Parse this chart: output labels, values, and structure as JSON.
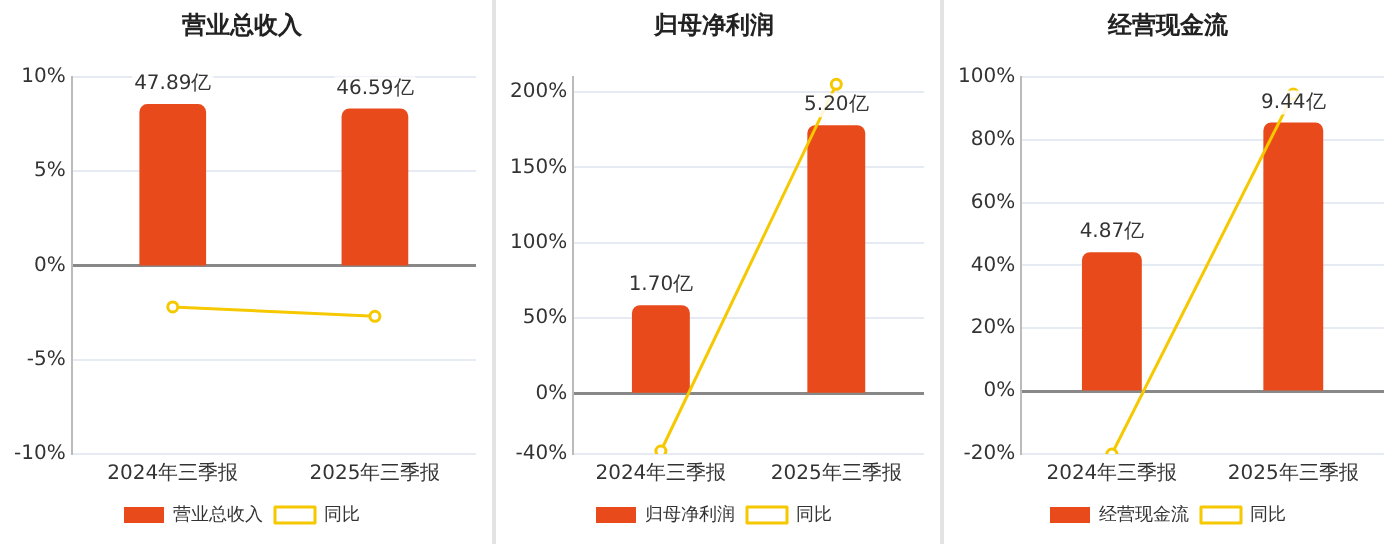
{
  "chart_data": [
    {
      "type": "bar",
      "title": "营业总收入",
      "categories": [
        "2024年三季报",
        "2025年三季报"
      ],
      "series": [
        {
          "name": "营业总收入",
          "color": "#e84a1b",
          "values": [
            47.89,
            46.59
          ],
          "axis": "y2",
          "value_labels": [
            "47.89亿",
            "46.59亿"
          ]
        },
        {
          "name": "同比",
          "type": "line",
          "color": "#f5c800",
          "values": [
            -2.2,
            -2.7
          ]
        }
      ],
      "ylim": [
        -10,
        10
      ],
      "yticks": [
        {
          "value": -10,
          "label": "-10%"
        },
        {
          "value": -5,
          "label": "-5%"
        },
        {
          "value": 0,
          "label": "0%"
        },
        {
          "value": 5,
          "label": "5%"
        },
        {
          "value": 10,
          "label": "10%"
        }
      ],
      "y2lim": [
        -56,
        56
      ],
      "grid": "y",
      "legend": "bottom",
      "marker": "circle"
    },
    {
      "type": "bar",
      "title": "归母净利润",
      "categories": [
        "2024年三季报",
        "2025年三季报"
      ],
      "series": [
        {
          "name": "归母净利润",
          "color": "#e84a1b",
          "values": [
            1.7,
            5.2
          ],
          "axis": "y2",
          "value_labels": [
            "1.70亿",
            "5.20亿"
          ]
        },
        {
          "name": "同比",
          "type": "line",
          "color": "#f5c800",
          "values": [
            -38,
            205
          ]
        }
      ],
      "ylim": [
        -40,
        210
      ],
      "yticks": [
        {
          "value": -40,
          "label": "-40%"
        },
        {
          "value": 0,
          "label": "0%"
        },
        {
          "value": 50,
          "label": "50%"
        },
        {
          "value": 100,
          "label": "100%"
        },
        {
          "value": 150,
          "label": "150%"
        },
        {
          "value": 200,
          "label": "200%"
        }
      ],
      "y2lim": [
        -1.19,
        6.14
      ],
      "grid": "y",
      "legend": "bottom",
      "marker": "circle"
    },
    {
      "type": "bar",
      "title": "经营现金流",
      "categories": [
        "2024年三季报",
        "2025年三季报"
      ],
      "series": [
        {
          "name": "经营现金流",
          "color": "#e84a1b",
          "values": [
            4.87,
            9.44
          ],
          "axis": "y2",
          "value_labels": [
            "4.87亿",
            "9.44亿"
          ]
        },
        {
          "name": "同比",
          "type": "line",
          "color": "#f5c800",
          "values": [
            -20,
            94.5
          ]
        }
      ],
      "ylim": [
        -20,
        100
      ],
      "yticks": [
        {
          "value": -20,
          "label": "-20%"
        },
        {
          "value": 0,
          "label": "0%"
        },
        {
          "value": 20,
          "label": "20%"
        },
        {
          "value": 40,
          "label": "40%"
        },
        {
          "value": 60,
          "label": "60%"
        },
        {
          "value": 80,
          "label": "80%"
        },
        {
          "value": 100,
          "label": "100%"
        }
      ],
      "y2lim": [
        -2.24,
        11.05
      ],
      "grid": "y",
      "legend": "bottom",
      "marker": "circle"
    }
  ]
}
